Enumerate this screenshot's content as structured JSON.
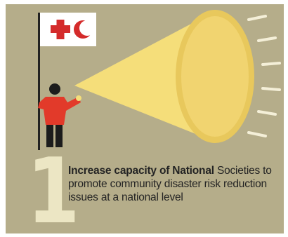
{
  "infographic": {
    "step_number": "1",
    "caption_bold": "Increase capacity of National",
    "caption_rest": "Societies to promote community disaster risk reduction issues at a national level",
    "colors": {
      "background": "#b5ad8a",
      "cone_yellow": "#f5de7a",
      "flag_red": "#d42b2b",
      "shirt_red": "#e23a2a",
      "number_cream": "#ece6c4"
    },
    "icons": [
      "red-cross-icon",
      "red-crescent-icon",
      "megaphone-icon",
      "person-icon",
      "flag-icon"
    ]
  }
}
